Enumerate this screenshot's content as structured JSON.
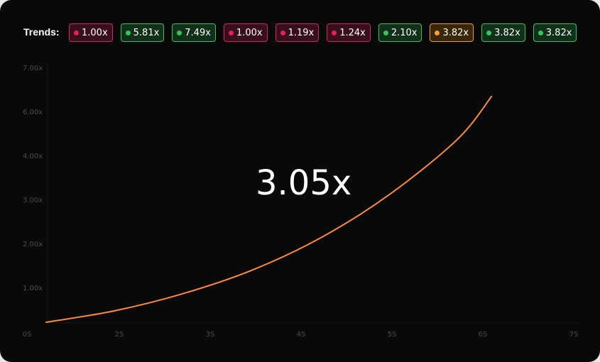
{
  "trends": {
    "label": "Trends:",
    "chips": [
      {
        "value": "1.00x",
        "status": "red"
      },
      {
        "value": "5.81x",
        "status": "green"
      },
      {
        "value": "7.49x",
        "status": "green"
      },
      {
        "value": "1.00x",
        "status": "red"
      },
      {
        "value": "1.19x",
        "status": "red"
      },
      {
        "value": "1.24x",
        "status": "red"
      },
      {
        "value": "2.10x",
        "status": "green"
      },
      {
        "value": "3.82x",
        "status": "orange"
      },
      {
        "value": "3.82x",
        "status": "green"
      },
      {
        "value": "3.82x",
        "status": "green"
      }
    ]
  },
  "current_multiplier": "3.05x",
  "colors": {
    "curve": "#ff8a3d",
    "red": "#e8204e",
    "green": "#34c65a",
    "orange": "#f5a02c",
    "background": "#080909"
  },
  "chart_data": {
    "type": "line",
    "y_tick_labels": [
      "7.00x",
      "6.00x",
      "4.00x",
      "3.00x",
      "2.00x",
      "1.00x"
    ],
    "x_tick_labels": [
      "0S",
      "2S",
      "3S",
      "4S",
      "5S",
      "6S",
      "7S"
    ],
    "series": [
      {
        "x": [
          0,
          1,
          2,
          3,
          4,
          5,
          6,
          6.5
        ],
        "y": [
          0,
          0.32,
          0.8,
          1.45,
          2.35,
          3.55,
          5.1,
          6.3
        ]
      }
    ]
  }
}
